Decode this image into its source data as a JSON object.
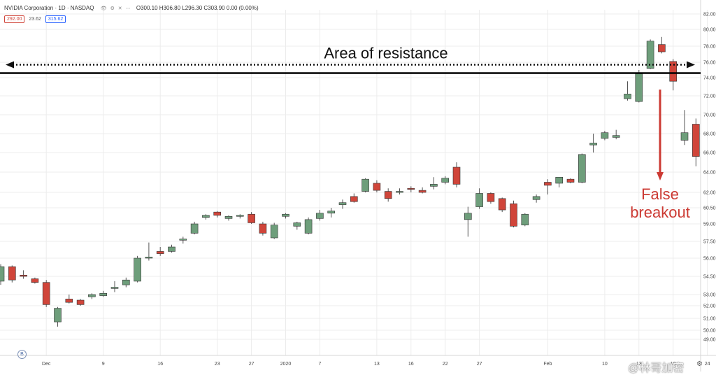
{
  "header": {
    "symbol_title": "NVIDIA Corporation · 1D · NASDAQ",
    "ohlc_text": "O300.10 H306.80 L296.30 C303.90 0.00 (0.00%)",
    "icons": [
      "visibility-icon",
      "settings-icon",
      "close-icon",
      "more-icon"
    ],
    "price_box_left": "292.00",
    "price_box_mid": "23.62",
    "price_box_right": "315.62"
  },
  "colors": {
    "up": "#6e9e7b",
    "down": "#d0453a",
    "resistance": "#000000",
    "arrow": "#cc3a33",
    "grid": "#ececec"
  },
  "chart_data": {
    "type": "candlestick",
    "ylim": [
      49,
      83
    ],
    "y_ticks": [
      "82.00",
      "80.00",
      "78.00",
      "76.00",
      "74.00",
      "72.00",
      "70.00",
      "68.00",
      "66.00",
      "64.00",
      "62.00",
      "60.50",
      "59.00",
      "57.50",
      "56.00",
      "54.50",
      "53.00",
      "52.00",
      "51.00",
      "50.00",
      "49.00"
    ],
    "x_tick_labels": [
      {
        "index": 4,
        "label": "Dec"
      },
      {
        "index": 9,
        "label": "9"
      },
      {
        "index": 14,
        "label": "16"
      },
      {
        "index": 19,
        "label": "23"
      },
      {
        "index": 22,
        "label": "27"
      },
      {
        "index": 25,
        "label": "2020"
      },
      {
        "index": 28,
        "label": "7"
      },
      {
        "index": 33,
        "label": "13"
      },
      {
        "index": 36,
        "label": "16"
      },
      {
        "index": 39,
        "label": "22"
      },
      {
        "index": 42,
        "label": "27"
      },
      {
        "index": 48,
        "label": "Feb"
      },
      {
        "index": 53,
        "label": "10"
      },
      {
        "index": 56,
        "label": "13"
      },
      {
        "index": 59,
        "label": "19"
      },
      {
        "index": 62,
        "label": "24"
      }
    ],
    "candles": [
      {
        "o": 54.1,
        "h": 55.5,
        "l": 53.8,
        "c": 55.3
      },
      {
        "o": 55.3,
        "h": 55.4,
        "l": 54.0,
        "c": 54.2
      },
      {
        "o": 54.6,
        "h": 55.0,
        "l": 54.3,
        "c": 54.5
      },
      {
        "o": 54.3,
        "h": 54.4,
        "l": 53.9,
        "c": 54.0
      },
      {
        "o": 54.0,
        "h": 54.2,
        "l": 51.9,
        "c": 52.1
      },
      {
        "o": 50.7,
        "h": 51.9,
        "l": 50.3,
        "c": 51.8
      },
      {
        "o": 52.6,
        "h": 53.0,
        "l": 52.2,
        "c": 52.3
      },
      {
        "o": 52.5,
        "h": 52.6,
        "l": 52.0,
        "c": 52.1
      },
      {
        "o": 52.8,
        "h": 53.1,
        "l": 52.6,
        "c": 53.0
      },
      {
        "o": 52.9,
        "h": 53.3,
        "l": 52.8,
        "c": 53.1
      },
      {
        "o": 53.5,
        "h": 54.1,
        "l": 53.2,
        "c": 53.6
      },
      {
        "o": 53.8,
        "h": 54.4,
        "l": 53.6,
        "c": 54.2
      },
      {
        "o": 54.1,
        "h": 56.2,
        "l": 54.0,
        "c": 56.0
      },
      {
        "o": 56.0,
        "h": 57.4,
        "l": 55.8,
        "c": 56.1
      },
      {
        "o": 56.6,
        "h": 57.0,
        "l": 56.2,
        "c": 56.4
      },
      {
        "o": 56.6,
        "h": 57.2,
        "l": 56.5,
        "c": 57.0
      },
      {
        "o": 57.6,
        "h": 57.9,
        "l": 57.3,
        "c": 57.7
      },
      {
        "o": 58.2,
        "h": 59.2,
        "l": 58.1,
        "c": 59.0
      },
      {
        "o": 59.6,
        "h": 59.9,
        "l": 59.4,
        "c": 59.8
      },
      {
        "o": 60.1,
        "h": 60.2,
        "l": 59.6,
        "c": 59.8
      },
      {
        "o": 59.5,
        "h": 59.8,
        "l": 59.3,
        "c": 59.7
      },
      {
        "o": 59.7,
        "h": 59.9,
        "l": 59.5,
        "c": 59.8
      },
      {
        "o": 59.9,
        "h": 60.1,
        "l": 59.0,
        "c": 59.1
      },
      {
        "o": 59.0,
        "h": 59.2,
        "l": 58.0,
        "c": 58.2
      },
      {
        "o": 57.8,
        "h": 59.1,
        "l": 57.7,
        "c": 58.9
      },
      {
        "o": 59.7,
        "h": 60.0,
        "l": 59.5,
        "c": 59.9
      },
      {
        "o": 58.8,
        "h": 59.2,
        "l": 58.5,
        "c": 59.1
      },
      {
        "o": 58.2,
        "h": 59.6,
        "l": 58.1,
        "c": 59.4
      },
      {
        "o": 59.5,
        "h": 60.3,
        "l": 59.3,
        "c": 60.0
      },
      {
        "o": 60.0,
        "h": 60.5,
        "l": 59.6,
        "c": 60.2
      },
      {
        "o": 60.8,
        "h": 61.3,
        "l": 60.4,
        "c": 61.0
      },
      {
        "o": 61.6,
        "h": 61.9,
        "l": 61.0,
        "c": 61.1
      },
      {
        "o": 62.1,
        "h": 63.4,
        "l": 62.0,
        "c": 63.3
      },
      {
        "o": 62.9,
        "h": 63.2,
        "l": 62.0,
        "c": 62.2
      },
      {
        "o": 62.1,
        "h": 62.4,
        "l": 61.1,
        "c": 61.4
      },
      {
        "o": 62.0,
        "h": 62.4,
        "l": 61.8,
        "c": 62.1
      },
      {
        "o": 62.4,
        "h": 62.6,
        "l": 62.0,
        "c": 62.3
      },
      {
        "o": 62.2,
        "h": 62.5,
        "l": 61.9,
        "c": 62.0
      },
      {
        "o": 62.6,
        "h": 63.5,
        "l": 62.3,
        "c": 62.8
      },
      {
        "o": 63.0,
        "h": 63.6,
        "l": 62.8,
        "c": 63.4
      },
      {
        "o": 64.5,
        "h": 65.0,
        "l": 62.5,
        "c": 62.8
      },
      {
        "o": 59.4,
        "h": 60.6,
        "l": 57.9,
        "c": 60.0
      },
      {
        "o": 60.6,
        "h": 62.4,
        "l": 60.4,
        "c": 61.9
      },
      {
        "o": 61.9,
        "h": 62.0,
        "l": 60.9,
        "c": 61.1
      },
      {
        "o": 61.4,
        "h": 61.5,
        "l": 60.1,
        "c": 60.3
      },
      {
        "o": 60.9,
        "h": 61.2,
        "l": 58.7,
        "c": 58.8
      },
      {
        "o": 58.9,
        "h": 60.0,
        "l": 58.8,
        "c": 59.9
      },
      {
        "o": 61.3,
        "h": 61.8,
        "l": 61.0,
        "c": 61.6
      },
      {
        "o": 63.0,
        "h": 63.3,
        "l": 61.8,
        "c": 62.7
      },
      {
        "o": 62.9,
        "h": 63.5,
        "l": 62.5,
        "c": 63.5
      },
      {
        "o": 63.3,
        "h": 63.4,
        "l": 62.9,
        "c": 63.0
      },
      {
        "o": 63.0,
        "h": 65.9,
        "l": 62.9,
        "c": 65.8
      },
      {
        "o": 66.8,
        "h": 68.0,
        "l": 66.0,
        "c": 67.0
      },
      {
        "o": 67.5,
        "h": 68.3,
        "l": 67.3,
        "c": 68.1
      },
      {
        "o": 67.6,
        "h": 68.4,
        "l": 67.4,
        "c": 67.8
      },
      {
        "o": 71.7,
        "h": 73.6,
        "l": 71.5,
        "c": 72.2
      },
      {
        "o": 71.4,
        "h": 75.0,
        "l": 71.3,
        "c": 74.5
      },
      {
        "o": 75.2,
        "h": 78.8,
        "l": 75.1,
        "c": 78.6
      },
      {
        "o": 78.2,
        "h": 79.1,
        "l": 77.1,
        "c": 77.3
      },
      {
        "o": 76.1,
        "h": 76.4,
        "l": 72.6,
        "c": 73.6
      },
      {
        "o": 67.3,
        "h": 70.5,
        "l": 66.8,
        "c": 68.1
      },
      {
        "o": 69.0,
        "h": 69.6,
        "l": 64.6,
        "c": 65.6
      }
    ],
    "resistance_level": 74.5,
    "resistance_label": "Area of resistance",
    "breakout_label_line1": "False",
    "breakout_label_line2": "breakout"
  },
  "footer": {
    "badge_text": "B",
    "watermark": "@林哥加密",
    "gear_icon": "gear-icon"
  }
}
